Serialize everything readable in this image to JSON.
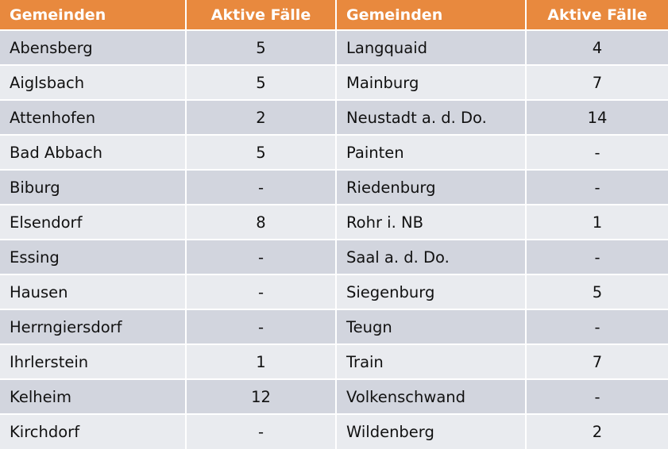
{
  "header": {
    "col1": "Gemeinden",
    "col2": "Aktive Fälle",
    "col3": "Gemeinden",
    "col4": "Aktive Fälle"
  },
  "colors": {
    "header_bg": "#e8893e",
    "header_text": "#ffffff",
    "row_dark": "#d2d5de",
    "row_light": "#e9ebef"
  },
  "rows": [
    {
      "left_name": "Abensberg",
      "left_value": "5",
      "right_name": "Langquaid",
      "right_value": "4"
    },
    {
      "left_name": "Aiglsbach",
      "left_value": "5",
      "right_name": "Mainburg",
      "right_value": "7"
    },
    {
      "left_name": "Attenhofen",
      "left_value": "2",
      "right_name": "Neustadt a. d. Do.",
      "right_value": "14"
    },
    {
      "left_name": "Bad Abbach",
      "left_value": "5",
      "right_name": "Painten",
      "right_value": "-"
    },
    {
      "left_name": "Biburg",
      "left_value": "-",
      "right_name": "Riedenburg",
      "right_value": "-"
    },
    {
      "left_name": "Elsendorf",
      "left_value": "8",
      "right_name": "Rohr i. NB",
      "right_value": "1"
    },
    {
      "left_name": "Essing",
      "left_value": "-",
      "right_name": "Saal a. d. Do.",
      "right_value": "-"
    },
    {
      "left_name": "Hausen",
      "left_value": "-",
      "right_name": "Siegenburg",
      "right_value": "5"
    },
    {
      "left_name": "Herrngiersdorf",
      "left_value": "-",
      "right_name": "Teugn",
      "right_value": "-"
    },
    {
      "left_name": "Ihrlerstein",
      "left_value": "1",
      "right_name": "Train",
      "right_value": "7"
    },
    {
      "left_name": "Kelheim",
      "left_value": "12",
      "right_name": "Volkenschwand",
      "right_value": "-"
    },
    {
      "left_name": "Kirchdorf",
      "left_value": "-",
      "right_name": "Wildenberg",
      "right_value": "2"
    }
  ]
}
